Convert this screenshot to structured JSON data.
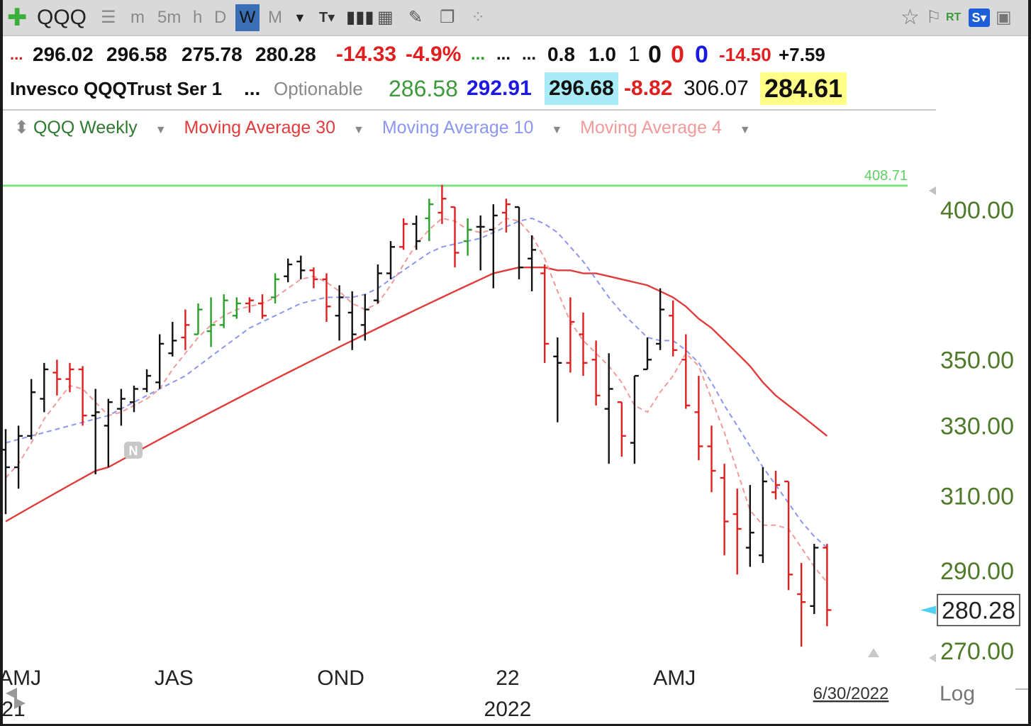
{
  "toolbar": {
    "symbol": "QQQ",
    "timeframes": [
      "m",
      "5m",
      "h",
      "D",
      "W",
      "M"
    ],
    "selected_timeframe": "W",
    "rt_label": "RT",
    "s_label": "S"
  },
  "quote": {
    "row1": [
      {
        "text": "...",
        "color": "#cc2020"
      },
      {
        "text": "296.02",
        "color": "#111111"
      },
      {
        "text": "296.58",
        "color": "#111111"
      },
      {
        "text": "275.78",
        "color": "#111111"
      },
      {
        "text": "280.28",
        "color": "#111111"
      },
      {
        "text": "-14.33",
        "color": "#e02020"
      },
      {
        "text": "-4.9%",
        "color": "#e02020"
      },
      {
        "text": "...",
        "color": "#2a9d2a"
      },
      {
        "text": "...",
        "color": "#111111"
      },
      {
        "text": "...",
        "color": "#111111"
      },
      {
        "text": "0.8",
        "color": "#111111"
      },
      {
        "text": "1.0",
        "color": "#111111"
      },
      {
        "text": "1",
        "color": "#111111"
      },
      {
        "text": "0",
        "color": "#111111"
      },
      {
        "text": "0",
        "color": "#e02020"
      },
      {
        "text": "0",
        "color": "#1a1ae0"
      },
      {
        "text": "-14.50",
        "color": "#e02020"
      },
      {
        "text": "+7.59",
        "color": "#111111"
      }
    ],
    "row2": [
      {
        "text": "Invesco QQQTrust Ser 1",
        "color": "#111111"
      },
      {
        "text": "...",
        "color": "#111111"
      },
      {
        "text": "Optionable",
        "color": "#8a8a8a"
      },
      {
        "text": "286.58",
        "color": "#3c9a3c"
      },
      {
        "text": "292.91",
        "color": "#1a1ae0"
      },
      {
        "text": "296.68",
        "color": "#111111"
      },
      {
        "text": "-8.82",
        "color": "#e02020"
      },
      {
        "text": "306.07",
        "color": "#111111"
      },
      {
        "text": "284.61",
        "color": "#111111"
      }
    ]
  },
  "legend": {
    "items": [
      {
        "label": "QQQ Weekly",
        "color": "#2f7a2f"
      },
      {
        "label": "Moving Average 30",
        "color": "#e03c3c"
      },
      {
        "label": "Moving Average 10",
        "color": "#8c96f0"
      },
      {
        "label": "Moving Average 4",
        "color": "#f29a9a"
      }
    ]
  },
  "chart_data": {
    "type": "line",
    "title": "QQQ Weekly",
    "scale": "log",
    "scale_label": "Log",
    "y_ticks": [
      270,
      290,
      310,
      330,
      350,
      400
    ],
    "y_tick_labels": [
      "270.00",
      "290.00",
      "310.00",
      "330.00",
      "350.00",
      "400.00"
    ],
    "last_price_label": "280.28",
    "hline": {
      "value": 408.71,
      "label": "408.71",
      "color": "#7fe07f"
    },
    "x_tick_labels": [
      {
        "week": 1,
        "text": "AMJ"
      },
      {
        "week": 13,
        "text": "JAS"
      },
      {
        "week": 26,
        "text": "OND"
      },
      {
        "week": 39,
        "text": "22"
      },
      {
        "week": 52,
        "text": "AMJ"
      }
    ],
    "year_labels": [
      {
        "week": 0.5,
        "text": "21"
      },
      {
        "week": 39,
        "text": "2022"
      }
    ],
    "date_label": "6/30/2022",
    "bars": [
      {
        "o": 323,
        "h": 329,
        "l": 305,
        "c": 318
      },
      {
        "o": 318,
        "h": 330,
        "l": 312,
        "c": 327
      },
      {
        "o": 327,
        "h": 344,
        "l": 326,
        "c": 340
      },
      {
        "o": 338,
        "h": 349,
        "l": 334,
        "c": 347
      },
      {
        "o": 346,
        "h": 350,
        "l": 339,
        "c": 344
      },
      {
        "o": 344,
        "h": 349,
        "l": 340,
        "c": 347
      },
      {
        "o": 347,
        "h": 348,
        "l": 330,
        "c": 333
      },
      {
        "o": 333,
        "h": 341,
        "l": 316,
        "c": 334
      },
      {
        "o": 330,
        "h": 338,
        "l": 318,
        "c": 337
      },
      {
        "o": 335,
        "h": 341,
        "l": 330,
        "c": 338
      },
      {
        "o": 337,
        "h": 342,
        "l": 334,
        "c": 341
      },
      {
        "o": 341,
        "h": 347,
        "l": 340,
        "c": 345
      },
      {
        "o": 343,
        "h": 358,
        "l": 341,
        "c": 355
      },
      {
        "o": 352,
        "h": 362,
        "l": 351,
        "c": 356
      },
      {
        "o": 357,
        "h": 366,
        "l": 353,
        "c": 361
      },
      {
        "o": 358,
        "h": 368,
        "l": 360,
        "c": 366
      },
      {
        "o": 359,
        "h": 370,
        "l": 354,
        "c": 361
      },
      {
        "o": 361,
        "h": 371,
        "l": 360,
        "c": 369
      },
      {
        "o": 364,
        "h": 370,
        "l": 363,
        "c": 368
      },
      {
        "o": 368,
        "h": 370,
        "l": 365,
        "c": 369
      },
      {
        "o": 368,
        "h": 371,
        "l": 363,
        "c": 364
      },
      {
        "o": 370,
        "h": 378,
        "l": 368,
        "c": 376
      },
      {
        "o": 377,
        "h": 383,
        "l": 375,
        "c": 381
      },
      {
        "o": 382,
        "h": 384,
        "l": 376,
        "c": 379
      },
      {
        "o": 379,
        "h": 380,
        "l": 373,
        "c": 376
      },
      {
        "o": 376,
        "h": 378,
        "l": 362,
        "c": 367
      },
      {
        "o": 364,
        "h": 374,
        "l": 356,
        "c": 370
      },
      {
        "o": 365,
        "h": 372,
        "l": 353,
        "c": 358
      },
      {
        "o": 361,
        "h": 371,
        "l": 356,
        "c": 366
      },
      {
        "o": 369,
        "h": 381,
        "l": 368,
        "c": 378
      },
      {
        "o": 378,
        "h": 389,
        "l": 376,
        "c": 387
      },
      {
        "o": 387,
        "h": 397,
        "l": 386,
        "c": 395
      },
      {
        "o": 395,
        "h": 398,
        "l": 386,
        "c": 389
      },
      {
        "o": 397,
        "h": 404,
        "l": 389,
        "c": 402
      },
      {
        "o": 399,
        "h": 409,
        "l": 395,
        "c": 404
      },
      {
        "o": 401,
        "h": 399,
        "l": 380,
        "c": 385
      },
      {
        "o": 389,
        "h": 397,
        "l": 384,
        "c": 393
      },
      {
        "o": 394,
        "h": 398,
        "l": 379,
        "c": 394
      },
      {
        "o": 393,
        "h": 402,
        "l": 373,
        "c": 398
      },
      {
        "o": 399,
        "h": 404,
        "l": 392,
        "c": 402
      },
      {
        "o": 401,
        "h": 401,
        "l": 376,
        "c": 380
      },
      {
        "o": 383,
        "h": 391,
        "l": 372,
        "c": 386
      },
      {
        "o": 378,
        "h": 381,
        "l": 349,
        "c": 355
      },
      {
        "o": 351,
        "h": 357,
        "l": 331,
        "c": 349
      },
      {
        "o": 349,
        "h": 370,
        "l": 346,
        "c": 362
      },
      {
        "o": 358,
        "h": 365,
        "l": 345,
        "c": 349
      },
      {
        "o": 350,
        "h": 356,
        "l": 336,
        "c": 339
      },
      {
        "o": 335,
        "h": 352,
        "l": 319,
        "c": 341
      },
      {
        "o": 337,
        "h": 337,
        "l": 321,
        "c": 327
      },
      {
        "o": 325,
        "h": 342,
        "l": 319,
        "c": 345
      },
      {
        "o": 347,
        "h": 357,
        "l": 347,
        "c": 350
      },
      {
        "o": 355,
        "h": 373,
        "l": 353,
        "c": 366
      },
      {
        "o": 364,
        "h": 369,
        "l": 351,
        "c": 353
      },
      {
        "o": 350,
        "h": 358,
        "l": 335,
        "c": 336
      },
      {
        "o": 334,
        "h": 345,
        "l": 320,
        "c": 324
      },
      {
        "o": 324,
        "h": 330,
        "l": 311,
        "c": 317
      },
      {
        "o": 315,
        "h": 319,
        "l": 294,
        "c": 303
      },
      {
        "o": 305,
        "h": 312,
        "l": 289,
        "c": 301
      },
      {
        "o": 296,
        "h": 313,
        "l": 291,
        "c": 300
      },
      {
        "o": 294,
        "h": 318,
        "l": 292,
        "c": 314
      },
      {
        "o": 311,
        "h": 317,
        "l": 309,
        "c": 313
      },
      {
        "o": 314,
        "h": 311,
        "l": 285,
        "c": 289
      },
      {
        "o": 284,
        "h": 292,
        "l": 271,
        "c": 282
      },
      {
        "o": 281,
        "h": 297,
        "l": 279,
        "c": 296
      },
      {
        "o": 296,
        "h": 297,
        "l": 276,
        "c": 280
      }
    ],
    "bar_colors": [
      "#111111",
      "#111111",
      "#111111",
      "#111111",
      "#e02020",
      "#e02020",
      "#e02020",
      "#111111",
      "#111111",
      "#111111",
      "#111111",
      "#111111",
      "#111111",
      "#111111",
      "#e02020",
      "#2aa02a",
      "#2aa02a",
      "#2aa02a",
      "#2aa02a",
      "#e02020",
      "#e02020",
      "#2aa02a",
      "#111111",
      "#111111",
      "#e02020",
      "#e02020",
      "#111111",
      "#111111",
      "#111111",
      "#111111",
      "#111111",
      "#e02020",
      "#111111",
      "#2aa02a",
      "#e02020",
      "#e02020",
      "#2aa02a",
      "#111111",
      "#111111",
      "#e02020",
      "#111111",
      "#111111",
      "#e02020",
      "#111111",
      "#e02020",
      "#e02020",
      "#e02020",
      "#111111",
      "#e02020",
      "#111111",
      "#111111",
      "#111111",
      "#e02020",
      "#e02020",
      "#e02020",
      "#e02020",
      "#e02020",
      "#e02020",
      "#111111",
      "#111111",
      "#e02020",
      "#e02020",
      "#e02020",
      "#111111",
      "#e02020"
    ],
    "series": [
      {
        "name": "Moving Average 30",
        "color": "#e03c3c",
        "style": "solid",
        "values": [
          303,
          305,
          307,
          309,
          311,
          313,
          315,
          317,
          318,
          320,
          322,
          324,
          326,
          328,
          330,
          332,
          334,
          336,
          338,
          340,
          342,
          344,
          346,
          348,
          350,
          352,
          354,
          356,
          358,
          360,
          362,
          364,
          366,
          368,
          370,
          372,
          374,
          376,
          378,
          379,
          380,
          380,
          380,
          379,
          379,
          378,
          378,
          377,
          376,
          375,
          374,
          372,
          370,
          367,
          363,
          360,
          356,
          352,
          348,
          343,
          339,
          336,
          333,
          330,
          327
        ]
      },
      {
        "name": "Moving Average 10",
        "color": "#8c96f0",
        "style": "dashed",
        "values": [
          325,
          326,
          327,
          328,
          329,
          330,
          331,
          332,
          333,
          335,
          337,
          339,
          341,
          343,
          345,
          348,
          351,
          354,
          357,
          360,
          362,
          364,
          366,
          368,
          369,
          370,
          370,
          370,
          371,
          373,
          376,
          379,
          382,
          385,
          387,
          388,
          389,
          390,
          392,
          394,
          396,
          397,
          395,
          392,
          387,
          382,
          376,
          370,
          365,
          361,
          357,
          356,
          356,
          353,
          349,
          343,
          336,
          330,
          324,
          318,
          313,
          308,
          303,
          299,
          296
        ]
      },
      {
        "name": "Moving Average 4",
        "color": "#f29a9a",
        "style": "dashed",
        "values": [
          315,
          319,
          325,
          332,
          337,
          342,
          341,
          337,
          333,
          334,
          336,
          338,
          341,
          347,
          352,
          357,
          361,
          364,
          366,
          367,
          368,
          370,
          373,
          376,
          377,
          375,
          372,
          368,
          366,
          368,
          374,
          381,
          388,
          393,
          397,
          396,
          393,
          392,
          393,
          397,
          396,
          391,
          383,
          372,
          362,
          356,
          352,
          348,
          343,
          336,
          334,
          340,
          345,
          352,
          348,
          338,
          328,
          317,
          306,
          302,
          302,
          301,
          296,
          291,
          287
        ]
      }
    ]
  }
}
